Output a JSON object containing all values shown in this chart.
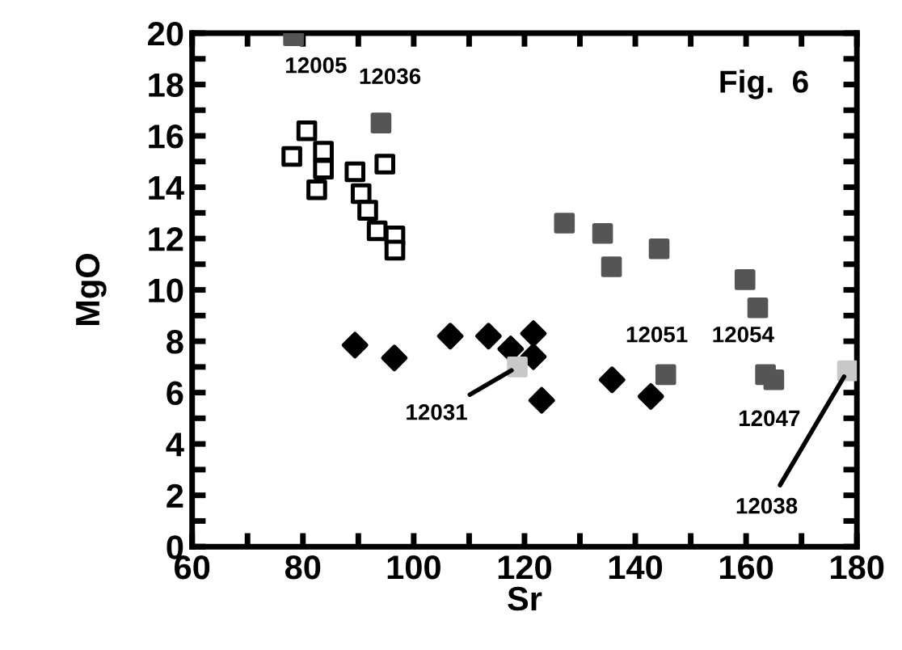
{
  "chart_data": {
    "type": "scatter",
    "xlabel": "Sr",
    "ylabel": "MgO",
    "xlim": [
      60,
      180
    ],
    "ylim": [
      0,
      20
    ],
    "xticks": [
      60,
      {
        "value": 70,
        "label": null
      },
      80,
      {
        "value": 90,
        "label": null
      },
      100,
      {
        "value": 110,
        "label": null
      },
      120,
      {
        "value": 130,
        "label": null
      },
      140,
      {
        "value": 150,
        "label": null
      },
      160,
      {
        "value": 170,
        "label": null
      },
      180
    ],
    "yticks": [
      0,
      {
        "value": 1,
        "label": null
      },
      2,
      {
        "value": 3,
        "label": null
      },
      4,
      {
        "value": 5,
        "label": null
      },
      6,
      {
        "value": 7,
        "label": null
      },
      8,
      {
        "value": 9,
        "label": null
      },
      10,
      {
        "value": 11,
        "label": null
      },
      12,
      {
        "value": 13,
        "label": null
      },
      14,
      {
        "value": 15,
        "label": null
      },
      16,
      {
        "value": 17,
        "label": null
      },
      18,
      {
        "value": 19,
        "label": null
      },
      20
    ],
    "grid": false,
    "legend": false,
    "series": [
      {
        "color": "#ffffff",
        "marker": "square",
        "x": [
          78.0,
          80.7,
          83.7,
          83.7,
          82.5,
          89.4,
          90.5,
          91.7,
          93.4,
          96.6,
          96.6,
          94.8
        ],
        "values": [
          15.2,
          16.2,
          15.4,
          14.7,
          13.9,
          14.6,
          13.75,
          13.1,
          12.3,
          12.1,
          11.55,
          14.9
        ]
      },
      {
        "color": "#555555",
        "marker": "square",
        "x": [
          78.3,
          94.1,
          127.2,
          134.1,
          135.7,
          144.3,
          159.8,
          162.1,
          145.5,
          163.5,
          165.0
        ],
        "values": [
          19.9,
          16.5,
          12.6,
          12.2,
          10.9,
          11.6,
          10.4,
          9.3,
          6.7,
          6.7,
          6.5
        ]
      },
      {
        "color": "#000000",
        "marker": "diamond",
        "x": [
          89.4,
          96.5,
          106.6,
          113.5,
          121.6,
          117.5,
          121.6,
          123.1,
          135.8,
          142.8
        ],
        "values": [
          7.85,
          7.35,
          8.2,
          8.2,
          8.3,
          7.7,
          7.4,
          5.7,
          6.5,
          5.85
        ]
      },
      {
        "color": "#c8c8c8",
        "marker": "square",
        "x": [
          118.7,
          178.3
        ],
        "values": [
          7.0,
          6.85
        ]
      }
    ],
    "annotations": [
      {
        "text": "12005",
        "x": 78.3,
        "y": 19.9
      },
      {
        "text": "12036",
        "x": 94.1,
        "y": 16.5
      },
      {
        "text": "12031",
        "x": 118.7,
        "y": 7.0
      },
      {
        "text": "12051",
        "x": 145.5,
        "y": 6.7
      },
      {
        "text": "12054",
        "x": 163.5,
        "y": 6.7
      },
      {
        "text": "12047",
        "x": 165.0,
        "y": 6.5
      },
      {
        "text": "12038",
        "x": 178.3,
        "y": 6.85
      },
      "Fig.  6"
    ]
  }
}
